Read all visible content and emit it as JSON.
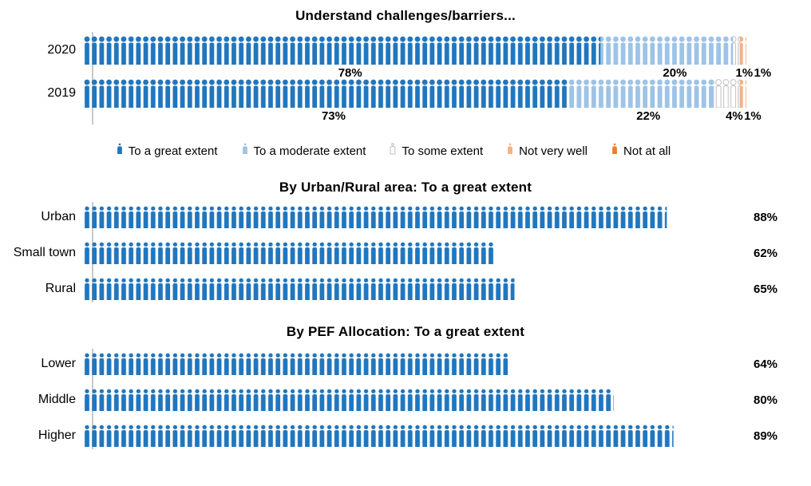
{
  "colors": {
    "great": "#2176bd",
    "moderate": "#9dc3e6",
    "some_fill": "#ffffff",
    "some_stroke": "#bfbfbf",
    "not_very_well": "#f4b183",
    "not_at_all": "#ed7d31",
    "axis_line": "#c9c9c9",
    "text": "#000000"
  },
  "chart_data": [
    {
      "type": "pictogram-stacked-bar",
      "title": "Understand challenges/barriers...",
      "xlim": [
        0,
        100
      ],
      "categories": [
        "2020",
        "2019"
      ],
      "series_names": [
        "To a great extent",
        "To a moderate extent",
        "To some extent",
        "Not very well",
        "Not at all"
      ],
      "series_keys": [
        "great",
        "moderate",
        "some",
        "not_very_well",
        "not_at_all"
      ],
      "rows": [
        {
          "label": "2020",
          "values": [
            78,
            20,
            1,
            1,
            0
          ],
          "value_labels": [
            "78%",
            "20%",
            "1%",
            "1%",
            ""
          ]
        },
        {
          "label": "2019",
          "values": [
            73,
            22,
            4,
            1,
            0
          ],
          "value_labels": [
            "73%",
            "22%",
            "4%",
            "1%",
            ""
          ]
        }
      ]
    },
    {
      "type": "pictogram-bar",
      "title": "By Urban/Rural area: To a great extent",
      "xlim": [
        0,
        100
      ],
      "series_key": "great",
      "categories": [
        "Urban",
        "Small town",
        "Rural"
      ],
      "values": [
        88,
        62,
        65
      ],
      "value_labels": [
        "88%",
        "62%",
        "65%"
      ]
    },
    {
      "type": "pictogram-bar",
      "title": "By PEF Allocation: To a great extent",
      "xlim": [
        0,
        100
      ],
      "series_key": "great",
      "categories": [
        "Lower",
        "Middle",
        "Higher"
      ],
      "values": [
        64,
        80,
        89
      ],
      "value_labels": [
        "64%",
        "80%",
        "89%"
      ]
    }
  ],
  "legend": {
    "items": [
      {
        "label": "To a great extent",
        "key": "great",
        "icon": "person-icon"
      },
      {
        "label": "To a moderate extent",
        "key": "moderate",
        "icon": "person-icon"
      },
      {
        "label": "To some extent",
        "key": "some",
        "icon": "person-icon"
      },
      {
        "label": "Not very well",
        "key": "not_very_well",
        "icon": "person-icon"
      },
      {
        "label": "Not at all",
        "key": "not_at_all",
        "icon": "person-icon"
      }
    ]
  }
}
